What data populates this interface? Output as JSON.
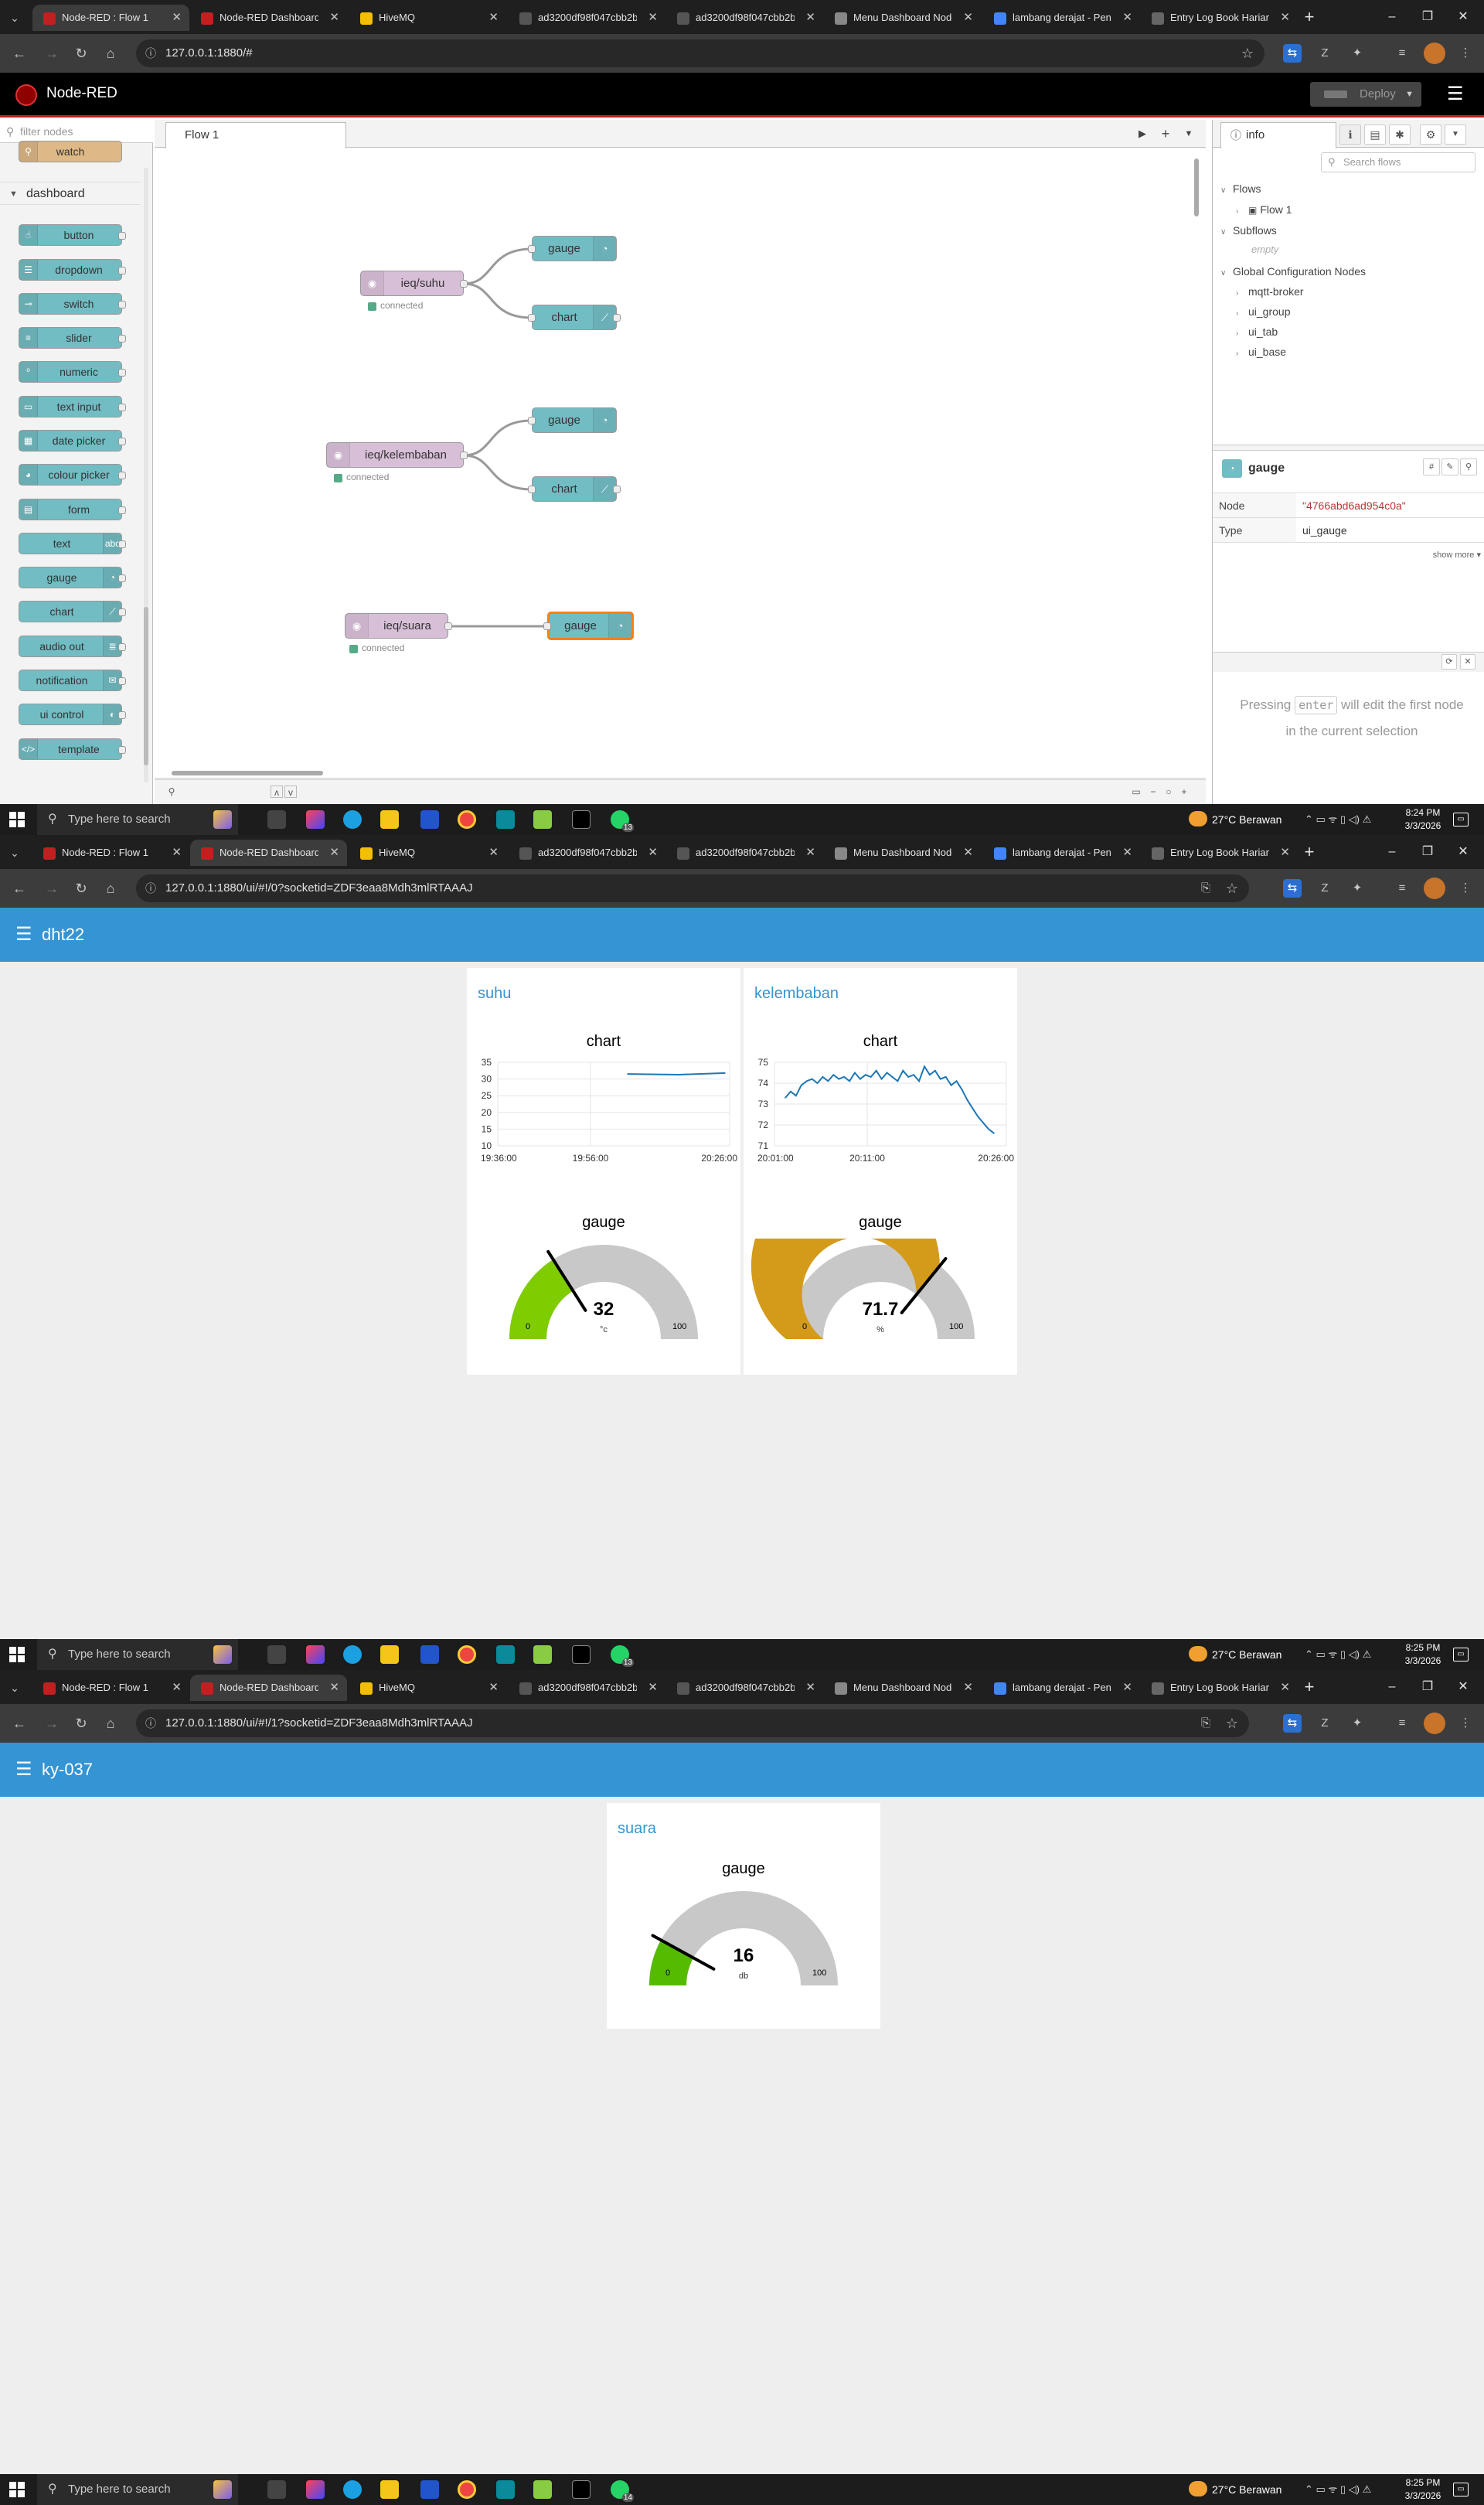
{
  "browser": {
    "tab_titles": [
      "Node-RED : Flow 1",
      "Node-RED Dashboard",
      "HiveMQ",
      "ad3200df98f047cbb2b...",
      "ad3200df98f047cbb2b...",
      "Menu Dashboard Node...",
      "lambang derajat - Pene...",
      "Entry Log Book Harian"
    ],
    "url_editor": "127.0.0.1:1880/#",
    "url_suhu": "127.0.0.1:1880/ui/#!/0?socketid=ZDF3eaa8Mdh3mlRTAAAJ",
    "url_suara": "127.0.0.1:1880/ui/#!/1?socketid=ZDF3eaa8Mdh3mlRTAAAJ",
    "colors": {
      "chrome_dark": "#1f1f1f",
      "tab_active": "#3c3c3c"
    }
  },
  "editor": {
    "app_title": "Node-RED",
    "deploy_label": "Deploy",
    "filter_placeholder": "filter nodes",
    "palette": {
      "prev_node": "watch",
      "category": "dashboard",
      "nodes": [
        "button",
        "dropdown",
        "switch",
        "slider",
        "numeric",
        "text input",
        "date picker",
        "colour picker",
        "form",
        "text",
        "gauge",
        "chart",
        "audio out",
        "notification",
        "ui control",
        "template"
      ]
    },
    "flow_tab": "Flow 1",
    "flow_nodes": {
      "mqtt1": "ieq/suhu",
      "mqtt2": "ieq/kelembaban",
      "mqtt3": "ieq/suara",
      "status": "connected",
      "gauge": "gauge",
      "chart": "chart"
    },
    "sidebar": {
      "tab": "info",
      "search_placeholder": "Search flows",
      "tree": {
        "flows": "Flows",
        "flow1": "Flow 1",
        "subflows": "Subflows",
        "empty": "empty",
        "global": "Global Configuration Nodes",
        "config_nodes": [
          "mqtt-broker",
          "ui_group",
          "ui_tab",
          "ui_base"
        ]
      },
      "selected_title": "gauge",
      "props": {
        "node_key": "Node",
        "node_val": "\"4766abd6ad954c0a\"",
        "type_key": "Type",
        "type_val": "ui_gauge"
      },
      "show_more": "show more ▾",
      "help_pre": "Pressing",
      "help_key": "enter",
      "help_post": "will edit the first node in the current selection"
    },
    "colors": {
      "header": "#000000",
      "accent": "#c02020",
      "ui_node": "#72bcc3",
      "mqtt_node": "#d8bfd8",
      "selection": "#ff7f0e"
    }
  },
  "taskbar": {
    "search_placeholder": "Type here to search",
    "weather": "27°C  Berawan",
    "time1": "8:24 PM",
    "time2": "8:25 PM",
    "date": "3/3/2026",
    "notif1": "13",
    "notif2": "13",
    "notif3": "14"
  },
  "dashboard1": {
    "title": "dht22",
    "groups": [
      {
        "title": "suhu",
        "chart_title": "chart",
        "gauge_title": "gauge",
        "gauge_value": "32",
        "gauge_unit": "°c",
        "gauge_min": "0",
        "gauge_max": "100"
      },
      {
        "title": "kelembaban",
        "chart_title": "chart",
        "gauge_title": "gauge",
        "gauge_value": "71.7",
        "gauge_unit": "%",
        "gauge_min": "0",
        "gauge_max": "100"
      }
    ]
  },
  "dashboard2": {
    "title": "ky-037",
    "group_title": "suara",
    "gauge_title": "gauge",
    "gauge_value": "16",
    "gauge_unit": "db",
    "gauge_min": "0",
    "gauge_max": "100"
  },
  "chart_data": [
    {
      "type": "line",
      "title": "chart",
      "x_tick_labels": [
        "19:36:00",
        "19:56:00",
        "20:26:00"
      ],
      "y_ticks": [
        10,
        15,
        20,
        25,
        30,
        35
      ],
      "ylim": [
        10,
        35
      ],
      "series": [
        {
          "x": [
            "20:04:00",
            "20:15:00",
            "20:25:00"
          ],
          "values": [
            31.5,
            31.3,
            31.8
          ]
        }
      ],
      "grid": true
    },
    {
      "type": "line",
      "title": "chart",
      "x_tick_labels": [
        "20:01:00",
        "20:11:00",
        "20:26:00"
      ],
      "y_ticks": [
        71,
        72,
        73,
        74,
        75
      ],
      "ylim": [
        71,
        75
      ],
      "series": [
        {
          "values": [
            73.3,
            73.6,
            73.4,
            73.9,
            74.1,
            74.2,
            74.0,
            74.3,
            74.1,
            74.4,
            74.2,
            74.3,
            74.1,
            74.5,
            74.2,
            74.4,
            74.3,
            74.6,
            74.2,
            74.5,
            74.3,
            74.1,
            74.6,
            74.3,
            74.4,
            74.1,
            74.8,
            74.4,
            74.6,
            74.2,
            74.3,
            73.9,
            74.1,
            73.7,
            73.2,
            72.8,
            72.4,
            72.1,
            71.8,
            71.6
          ]
        }
      ],
      "grid": true
    },
    {
      "type": "gauge",
      "title": "gauge",
      "value": 32,
      "min": 0,
      "max": 100,
      "unit": "°c",
      "color": "#7fcc00"
    },
    {
      "type": "gauge",
      "title": "gauge",
      "value": 71.7,
      "min": 0,
      "max": 100,
      "unit": "%",
      "color": "#d49a1a"
    },
    {
      "type": "gauge",
      "title": "gauge",
      "value": 16,
      "min": 0,
      "max": 100,
      "unit": "db",
      "color": "#55bb00"
    }
  ]
}
